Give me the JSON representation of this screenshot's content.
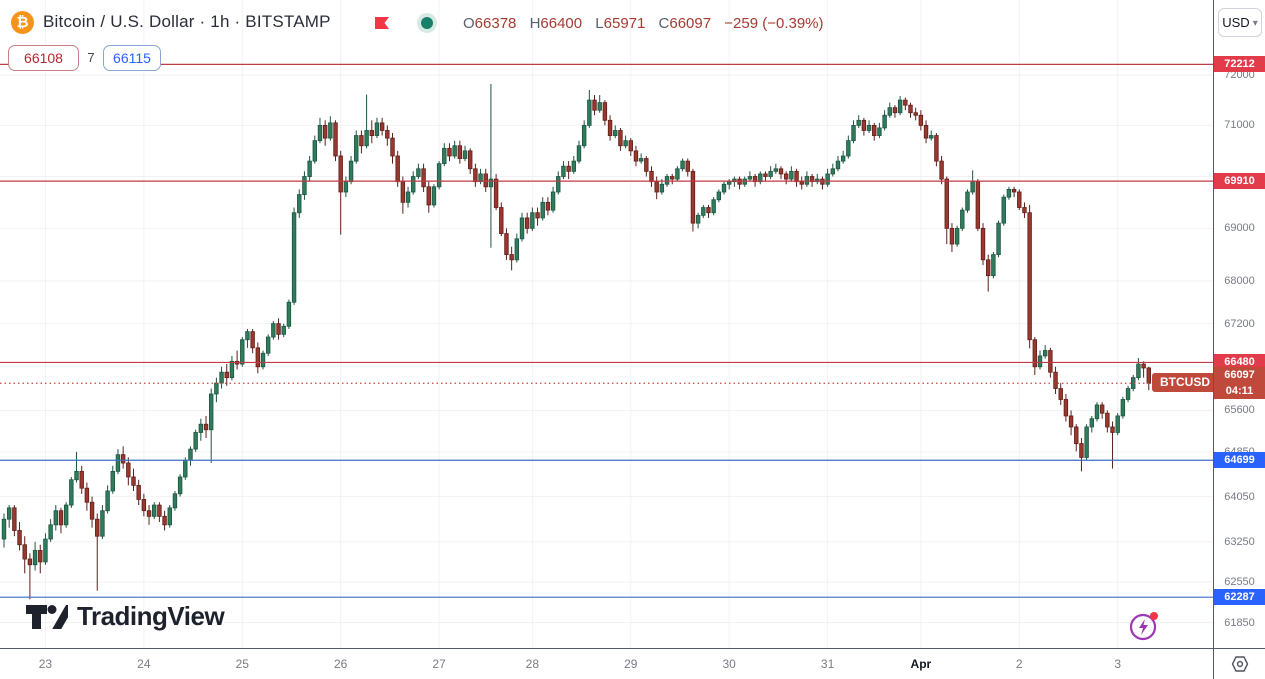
{
  "header": {
    "title": "Bitcoin / U.S. Dollar · 1h · BITSTAMP",
    "bitcoin_glyph": "₿",
    "ohlc": {
      "items": [
        {
          "k": "O",
          "v": "66378"
        },
        {
          "k": "H",
          "v": "66400"
        },
        {
          "k": "L",
          "v": "65971"
        },
        {
          "k": "C",
          "v": "66097"
        }
      ],
      "change": "−259 (−0.39%)"
    },
    "sell_price": "66108",
    "spread": "7",
    "buy_price": "66115",
    "currency_button": "USD",
    "icons": {
      "flag": "flag-icon",
      "status": "data-connected-dot"
    }
  },
  "watermark": {
    "text": "TradingView"
  },
  "chart_data": {
    "type": "candlestick",
    "symbol": "BTCUSD",
    "interval": "1h",
    "exchange": "BITSTAMP",
    "scale": "log",
    "grid": true,
    "price_axis_side": "right",
    "price_ticks": [
      72000,
      71000,
      69000,
      68000,
      67200,
      65600,
      64850,
      64050,
      63250,
      62550,
      61850
    ],
    "grid_prices": [
      72000,
      71000,
      70000,
      69000,
      68000,
      67200,
      66400,
      65600,
      64850,
      64050,
      63250,
      62550,
      61850
    ],
    "time_ticks": [
      {
        "label": "23",
        "index": 8
      },
      {
        "label": "24",
        "index": 27
      },
      {
        "label": "25",
        "index": 46
      },
      {
        "label": "26",
        "index": 65
      },
      {
        "label": "27",
        "index": 84
      },
      {
        "label": "28",
        "index": 102
      },
      {
        "label": "29",
        "index": 121
      },
      {
        "label": "30",
        "index": 140
      },
      {
        "label": "31",
        "index": 159
      },
      {
        "label": "Apr",
        "index": 177,
        "bold": true
      },
      {
        "label": "2",
        "index": 196
      },
      {
        "label": "3",
        "index": 215
      }
    ],
    "levels": [
      {
        "price": 72212,
        "label": "72212",
        "palette": "red"
      },
      {
        "price": 69910,
        "label": "69910",
        "palette": "red"
      },
      {
        "price": 66480,
        "label": "66480",
        "palette": "red"
      },
      {
        "price": 64699,
        "label": "64699",
        "palette": "blue"
      },
      {
        "price": 62287,
        "label": "62287",
        "palette": "blue"
      }
    ],
    "current_price": {
      "price": 66097,
      "label": "66097",
      "countdown": "04:11",
      "tag": "BTCUSD"
    },
    "colors": {
      "up": "#2f7c5c",
      "up_border": "#1d5440",
      "down": "#9a372e",
      "down_border": "#5f1f19",
      "red_line": "#c23a45",
      "red_label_bg": "#e23b4a",
      "cur_label_bg": "#bf4a3c",
      "blue_line": "#3c6fbf",
      "blue_label_bg": "#2962ff",
      "grid": "#f0f2f5",
      "axis_text": "#787b86"
    },
    "candles": [
      [
        63300,
        63750,
        63150,
        63650
      ],
      [
        63650,
        63900,
        63500,
        63850
      ],
      [
        63850,
        63900,
        63350,
        63450
      ],
      [
        63450,
        63600,
        63100,
        63200
      ],
      [
        63200,
        63350,
        62700,
        62950
      ],
      [
        62950,
        63050,
        62250,
        62850
      ],
      [
        62850,
        63250,
        62750,
        63100
      ],
      [
        63100,
        63200,
        62700,
        62900
      ],
      [
        62900,
        63400,
        62850,
        63300
      ],
      [
        63300,
        63650,
        63250,
        63550
      ],
      [
        63550,
        63900,
        63450,
        63800
      ],
      [
        63800,
        63850,
        63400,
        63550
      ],
      [
        63550,
        63950,
        63500,
        63900
      ],
      [
        63900,
        64400,
        63850,
        64350
      ],
      [
        64350,
        64850,
        64300,
        64500
      ],
      [
        64500,
        64600,
        64100,
        64200
      ],
      [
        64200,
        64300,
        63800,
        63950
      ],
      [
        63950,
        64050,
        63500,
        63650
      ],
      [
        63650,
        63750,
        62400,
        63350
      ],
      [
        63350,
        63900,
        63300,
        63800
      ],
      [
        63800,
        64250,
        63750,
        64150
      ],
      [
        64150,
        64600,
        64100,
        64500
      ],
      [
        64500,
        64900,
        64450,
        64800
      ],
      [
        64800,
        64950,
        64550,
        64650
      ],
      [
        64650,
        64750,
        64250,
        64400
      ],
      [
        64400,
        64550,
        64150,
        64250
      ],
      [
        64250,
        64350,
        63900,
        64000
      ],
      [
        64000,
        64100,
        63700,
        63800
      ],
      [
        63800,
        63900,
        63550,
        63700
      ],
      [
        63700,
        63950,
        63650,
        63900
      ],
      [
        63900,
        63950,
        63600,
        63700
      ],
      [
        63700,
        63800,
        63450,
        63550
      ],
      [
        63550,
        63900,
        63500,
        63850
      ],
      [
        63850,
        64150,
        63800,
        64100
      ],
      [
        64100,
        64450,
        64050,
        64400
      ],
      [
        64400,
        64750,
        64350,
        64700
      ],
      [
        64700,
        64950,
        64600,
        64900
      ],
      [
        64900,
        65250,
        64850,
        65200
      ],
      [
        65200,
        65450,
        65050,
        65350
      ],
      [
        65350,
        65500,
        65100,
        65250
      ],
      [
        65250,
        66000,
        64650,
        65900
      ],
      [
        65900,
        66200,
        65750,
        66100
      ],
      [
        66100,
        66400,
        66000,
        66300
      ],
      [
        66300,
        66450,
        66050,
        66200
      ],
      [
        66200,
        66600,
        66150,
        66500
      ],
      [
        66500,
        66700,
        66350,
        66450
      ],
      [
        66450,
        66950,
        66400,
        66900
      ],
      [
        66900,
        67100,
        66750,
        67050
      ],
      [
        67050,
        67100,
        66650,
        66750
      ],
      [
        66750,
        66850,
        66280,
        66400
      ],
      [
        66400,
        66700,
        66350,
        66650
      ],
      [
        66650,
        67000,
        66600,
        66950
      ],
      [
        66950,
        67250,
        66900,
        67200
      ],
      [
        67200,
        67300,
        66900,
        67000
      ],
      [
        67000,
        67200,
        66950,
        67150
      ],
      [
        67150,
        67650,
        67100,
        67600
      ],
      [
        67600,
        69400,
        67550,
        69300
      ],
      [
        69300,
        69750,
        69200,
        69650
      ],
      [
        69650,
        70100,
        69550,
        70000
      ],
      [
        70000,
        70400,
        69900,
        70300
      ],
      [
        70300,
        70800,
        70250,
        70700
      ],
      [
        70700,
        71150,
        70650,
        71000
      ],
      [
        71000,
        71100,
        70600,
        70750
      ],
      [
        70750,
        71180,
        70700,
        71050
      ],
      [
        71050,
        71100,
        70300,
        70400
      ],
      [
        70400,
        70500,
        68880,
        69700
      ],
      [
        69700,
        70000,
        69600,
        69900
      ],
      [
        69900,
        70400,
        69850,
        70300
      ],
      [
        70300,
        70900,
        70250,
        70800
      ],
      [
        70800,
        70900,
        70450,
        70600
      ],
      [
        70600,
        71610,
        70550,
        70900
      ],
      [
        70900,
        71100,
        70650,
        70800
      ],
      [
        70800,
        71150,
        70750,
        71050
      ],
      [
        71050,
        71150,
        70800,
        70900
      ],
      [
        70900,
        71000,
        70600,
        70750
      ],
      [
        70750,
        70850,
        70250,
        70400
      ],
      [
        70400,
        70500,
        69800,
        69900
      ],
      [
        69900,
        70000,
        69280,
        69500
      ],
      [
        69500,
        69800,
        69400,
        69700
      ],
      [
        69700,
        70100,
        69650,
        70000
      ],
      [
        70000,
        70250,
        69950,
        70150
      ],
      [
        70150,
        70250,
        69700,
        69800
      ],
      [
        69800,
        69900,
        69300,
        69450
      ],
      [
        69450,
        69850,
        69400,
        69800
      ],
      [
        69800,
        70300,
        69750,
        70250
      ],
      [
        70250,
        70650,
        70200,
        70550
      ],
      [
        70550,
        70650,
        70300,
        70400
      ],
      [
        70400,
        70700,
        70350,
        70600
      ],
      [
        70600,
        70700,
        70250,
        70350
      ],
      [
        70350,
        70600,
        70300,
        70500
      ],
      [
        70500,
        70550,
        70050,
        70150
      ],
      [
        70150,
        70250,
        69800,
        69900
      ],
      [
        69900,
        70150,
        69850,
        70050
      ],
      [
        70050,
        70150,
        69700,
        69800
      ],
      [
        69800,
        71820,
        68630,
        69950
      ],
      [
        69950,
        70050,
        69350,
        69400
      ],
      [
        69400,
        69500,
        68850,
        68900
      ],
      [
        68900,
        69000,
        68400,
        68500
      ],
      [
        68500,
        68650,
        68200,
        68400
      ],
      [
        68400,
        68900,
        68350,
        68800
      ],
      [
        68800,
        69300,
        68750,
        69200
      ],
      [
        69200,
        69300,
        68900,
        69000
      ],
      [
        69000,
        69400,
        68950,
        69300
      ],
      [
        69300,
        69400,
        69050,
        69200
      ],
      [
        69200,
        69600,
        69150,
        69500
      ],
      [
        69500,
        69600,
        69250,
        69350
      ],
      [
        69350,
        69800,
        69300,
        69700
      ],
      [
        69700,
        70100,
        69650,
        70000
      ],
      [
        70000,
        70300,
        69950,
        70200
      ],
      [
        70200,
        70300,
        69950,
        70100
      ],
      [
        70100,
        70400,
        70050,
        70300
      ],
      [
        70300,
        70700,
        70250,
        70600
      ],
      [
        70600,
        71100,
        70550,
        71000
      ],
      [
        71000,
        71700,
        70950,
        71500
      ],
      [
        71500,
        71600,
        71200,
        71300
      ],
      [
        71300,
        71600,
        71250,
        71450
      ],
      [
        71450,
        71500,
        71000,
        71100
      ],
      [
        71100,
        71200,
        70700,
        70800
      ],
      [
        70800,
        71000,
        70750,
        70900
      ],
      [
        70900,
        70950,
        70500,
        70600
      ],
      [
        70600,
        70800,
        70550,
        70700
      ],
      [
        70700,
        70750,
        70400,
        70500
      ],
      [
        70500,
        70600,
        70200,
        70300
      ],
      [
        70300,
        70450,
        70250,
        70350
      ],
      [
        70350,
        70400,
        70000,
        70100
      ],
      [
        70100,
        70200,
        69800,
        69900
      ],
      [
        69900,
        70000,
        69560,
        69700
      ],
      [
        69700,
        69950,
        69650,
        69850
      ],
      [
        69850,
        70050,
        69800,
        70000
      ],
      [
        70000,
        70050,
        69850,
        69950
      ],
      [
        69950,
        70200,
        69900,
        70150
      ],
      [
        70150,
        70350,
        70100,
        70300
      ],
      [
        70300,
        70350,
        70000,
        70100
      ],
      [
        70100,
        70150,
        68940,
        69100
      ],
      [
        69100,
        69300,
        69000,
        69250
      ],
      [
        69250,
        69450,
        69200,
        69400
      ],
      [
        69400,
        69450,
        69200,
        69300
      ],
      [
        69300,
        69600,
        69250,
        69550
      ],
      [
        69550,
        69750,
        69500,
        69700
      ],
      [
        69700,
        69900,
        69650,
        69850
      ],
      [
        69850,
        69950,
        69750,
        69900
      ],
      [
        69900,
        70000,
        69800,
        69950
      ],
      [
        69950,
        70000,
        69750,
        69850
      ],
      [
        69850,
        70000,
        69800,
        69950
      ],
      [
        69950,
        70100,
        69900,
        70000
      ],
      [
        70000,
        70050,
        69800,
        69900
      ],
      [
        69900,
        70100,
        69850,
        70050
      ],
      [
        70050,
        70100,
        69900,
        70000
      ],
      [
        70000,
        70200,
        69950,
        70100
      ],
      [
        70100,
        70250,
        70050,
        70150
      ],
      [
        70150,
        70200,
        69950,
        70050
      ],
      [
        70050,
        70100,
        69850,
        69950
      ],
      [
        69950,
        70200,
        69900,
        70100
      ],
      [
        70100,
        70150,
        69800,
        69900
      ],
      [
        69900,
        70000,
        69750,
        69850
      ],
      [
        69850,
        70100,
        69800,
        70000
      ],
      [
        70000,
        70050,
        69800,
        69900
      ],
      [
        69900,
        70050,
        69850,
        69950
      ],
      [
        69950,
        70000,
        69750,
        69850
      ],
      [
        69850,
        70150,
        69800,
        70050
      ],
      [
        70050,
        70250,
        70000,
        70150
      ],
      [
        70150,
        70400,
        70100,
        70300
      ],
      [
        70300,
        70500,
        70250,
        70400
      ],
      [
        70400,
        70800,
        70350,
        70700
      ],
      [
        70700,
        71100,
        70650,
        71000
      ],
      [
        71000,
        71200,
        70950,
        71100
      ],
      [
        71100,
        71150,
        70800,
        70900
      ],
      [
        70900,
        71100,
        70850,
        71000
      ],
      [
        71000,
        71050,
        70700,
        70800
      ],
      [
        70800,
        71050,
        70750,
        70950
      ],
      [
        70950,
        71300,
        70900,
        71200
      ],
      [
        71200,
        71450,
        71150,
        71350
      ],
      [
        71350,
        71400,
        71150,
        71250
      ],
      [
        71250,
        71580,
        71200,
        71500
      ],
      [
        71500,
        71550,
        71300,
        71400
      ],
      [
        71400,
        71450,
        71150,
        71250
      ],
      [
        71250,
        71350,
        71100,
        71200
      ],
      [
        71200,
        71300,
        70900,
        71000
      ],
      [
        71000,
        71100,
        70650,
        70750
      ],
      [
        70750,
        70900,
        70700,
        70800
      ],
      [
        70800,
        70850,
        70200,
        70300
      ],
      [
        70300,
        70400,
        69850,
        69950
      ],
      [
        69950,
        70000,
        68700,
        69000
      ],
      [
        69000,
        69100,
        68550,
        68700
      ],
      [
        68700,
        69050,
        68650,
        69000
      ],
      [
        69000,
        69400,
        68950,
        69350
      ],
      [
        69350,
        69750,
        69300,
        69700
      ],
      [
        69700,
        70120,
        69650,
        69900
      ],
      [
        69900,
        69950,
        68950,
        69000
      ],
      [
        69000,
        69100,
        68300,
        68400
      ],
      [
        68400,
        68500,
        67800,
        68100
      ],
      [
        68100,
        68550,
        68050,
        68500
      ],
      [
        68500,
        69150,
        68450,
        69100
      ],
      [
        69100,
        69650,
        69050,
        69600
      ],
      [
        69600,
        69800,
        69550,
        69750
      ],
      [
        69750,
        69800,
        69600,
        69700
      ],
      [
        69700,
        69750,
        69350,
        69400
      ],
      [
        69400,
        69500,
        69200,
        69300
      ],
      [
        69300,
        69450,
        66740,
        66900
      ],
      [
        66900,
        66950,
        66250,
        66400
      ],
      [
        66400,
        66700,
        66350,
        66600
      ],
      [
        66600,
        66800,
        66550,
        66700
      ],
      [
        66700,
        66750,
        66200,
        66300
      ],
      [
        66300,
        66400,
        65900,
        66000
      ],
      [
        66000,
        66100,
        65700,
        65800
      ],
      [
        65800,
        65900,
        65400,
        65500
      ],
      [
        65500,
        65600,
        65150,
        65300
      ],
      [
        65300,
        65350,
        64860,
        65000
      ],
      [
        65000,
        65100,
        64500,
        64750
      ],
      [
        64750,
        65350,
        64700,
        65300
      ],
      [
        65300,
        65500,
        65200,
        65450
      ],
      [
        65450,
        65750,
        65400,
        65700
      ],
      [
        65700,
        65750,
        65450,
        65550
      ],
      [
        65550,
        65600,
        65200,
        65300
      ],
      [
        65300,
        65400,
        64550,
        65200
      ],
      [
        65200,
        65550,
        65150,
        65500
      ],
      [
        65500,
        65850,
        65450,
        65800
      ],
      [
        65800,
        66050,
        65750,
        66000
      ],
      [
        66000,
        66250,
        65950,
        66200
      ],
      [
        66200,
        66560,
        66150,
        66450
      ],
      [
        66450,
        66500,
        66200,
        66378
      ],
      [
        66378,
        66400,
        65971,
        66097
      ]
    ]
  }
}
